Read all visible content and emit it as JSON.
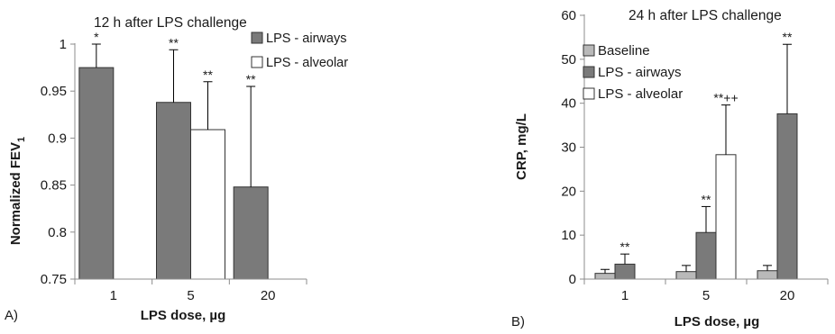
{
  "colors": {
    "baseline": "#b9b9b9",
    "airways": "#7a7a7a",
    "alveolar": "#ffffff",
    "axis": "#8c8c8c",
    "edge": "#333333"
  },
  "chart_data": [
    {
      "type": "bar",
      "panel_label": "A)",
      "title": "12 h after LPS challenge",
      "xlabel": "LPS dose, µg",
      "ylabel_main": "Normalized FEV",
      "ylabel_sub": "1",
      "categories": [
        "1",
        "5",
        "20"
      ],
      "ylim": [
        0.75,
        1.0
      ],
      "yticks": [
        "0.75",
        "0.8",
        "0.85",
        "0.9",
        "0.95",
        "1"
      ],
      "legend_position": "top-right",
      "series": [
        {
          "name": "LPS - airways",
          "color_key": "airways",
          "values": [
            0.975,
            0.938,
            0.848
          ],
          "errors": [
            0.025,
            0.056,
            0.107
          ],
          "annotations": [
            "*",
            "**",
            "**"
          ]
        },
        {
          "name": "LPS - alveolar",
          "color_key": "alveolar",
          "values": [
            null,
            0.909,
            null
          ],
          "errors": [
            null,
            0.051,
            null
          ],
          "annotations": [
            "",
            "**",
            ""
          ]
        }
      ]
    },
    {
      "type": "bar",
      "panel_label": "B)",
      "title": "24 h after LPS challenge",
      "xlabel": "LPS dose, µg",
      "ylabel_main": "CRP, mg/L",
      "ylabel_sub": "",
      "categories": [
        "1",
        "5",
        "20"
      ],
      "ylim": [
        0,
        60
      ],
      "yticks": [
        "0",
        "10",
        "20",
        "30",
        "40",
        "50",
        "60"
      ],
      "legend_position": "top-left",
      "series": [
        {
          "name": "Baseline",
          "color_key": "baseline",
          "values": [
            1.3,
            1.7,
            1.9
          ],
          "errors": [
            0.9,
            1.4,
            1.2
          ],
          "annotations": [
            "",
            "",
            ""
          ]
        },
        {
          "name": "LPS - airways",
          "color_key": "airways",
          "values": [
            3.4,
            10.6,
            37.6
          ],
          "errors": [
            2.3,
            5.9,
            15.8
          ],
          "annotations": [
            "**",
            "**",
            "**"
          ]
        },
        {
          "name": "LPS - alveolar",
          "color_key": "alveolar",
          "values": [
            null,
            28.3,
            null
          ],
          "errors": [
            null,
            11.3,
            null
          ],
          "annotations": [
            "",
            "**++",
            ""
          ]
        }
      ]
    }
  ]
}
